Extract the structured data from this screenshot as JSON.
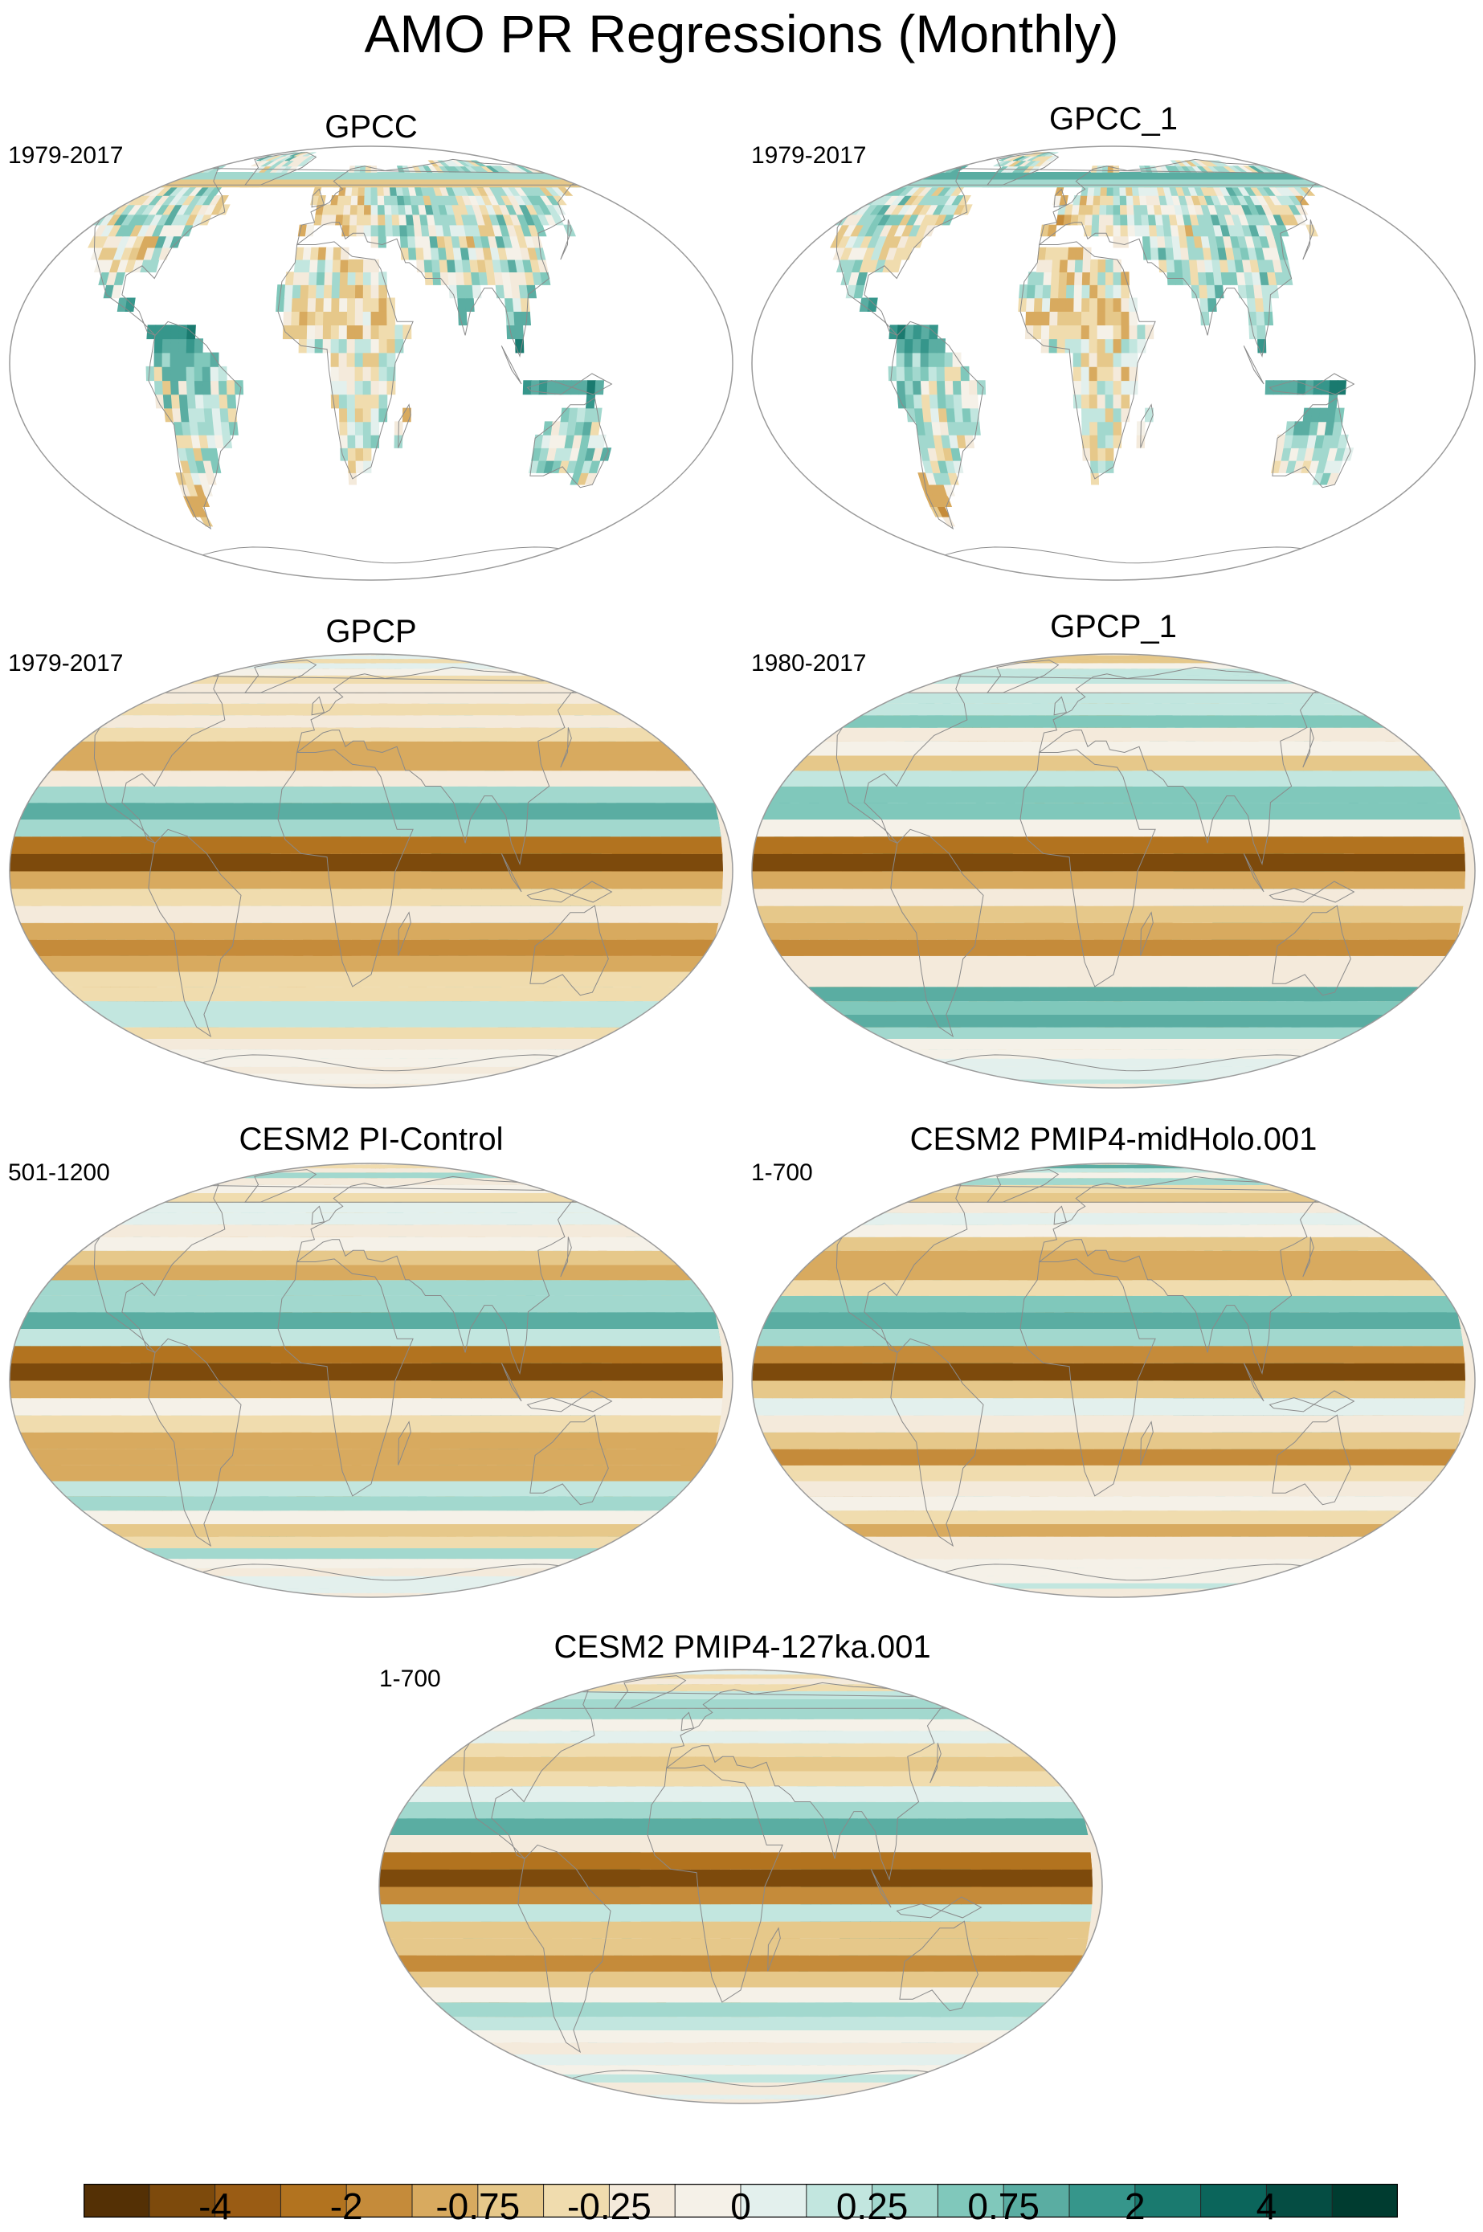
{
  "title": "AMO PR Regressions (Monthly)",
  "panels": [
    {
      "title": "GPCC",
      "period": "1979-2017",
      "coverage": "land"
    },
    {
      "title": "GPCC_1",
      "period": "1979-2017",
      "coverage": "land"
    },
    {
      "title": "GPCP",
      "period": "1979-2017",
      "coverage": "global"
    },
    {
      "title": "GPCP_1",
      "period": "1980-2017",
      "coverage": "global"
    },
    {
      "title": "CESM2 PI-Control",
      "period": "501-1200",
      "coverage": "global"
    },
    {
      "title": "CESM2 PMIP4-midHolo.001",
      "period": "1-700",
      "coverage": "global"
    },
    {
      "title": "CESM2 PMIP4-127ka.001",
      "period": "1-700",
      "coverage": "global"
    }
  ],
  "colorbar": {
    "colors": [
      "#543005",
      "#7d4a0c",
      "#9a5c14",
      "#b2731f",
      "#c58b3a",
      "#d8aa5f",
      "#e6c88a",
      "#f0dcae",
      "#f4eadb",
      "#f5f1e8",
      "#e3f0ed",
      "#c2e6df",
      "#a2d8ce",
      "#80c8bb",
      "#5aada2",
      "#36968b",
      "#1a7a6f",
      "#0b655b",
      "#054d43",
      "#003c30"
    ],
    "labels": [
      {
        "text": "-4",
        "boundary": 2
      },
      {
        "text": "-2",
        "boundary": 4
      },
      {
        "text": "-0.75",
        "boundary": 6
      },
      {
        "text": "-0.25",
        "boundary": 8
      },
      {
        "text": "0",
        "boundary": 10
      },
      {
        "text": "0.25",
        "boundary": 12
      },
      {
        "text": "0.75",
        "boundary": 14
      },
      {
        "text": "2",
        "boundary": 16
      },
      {
        "text": "4",
        "boundary": 18
      }
    ]
  }
}
